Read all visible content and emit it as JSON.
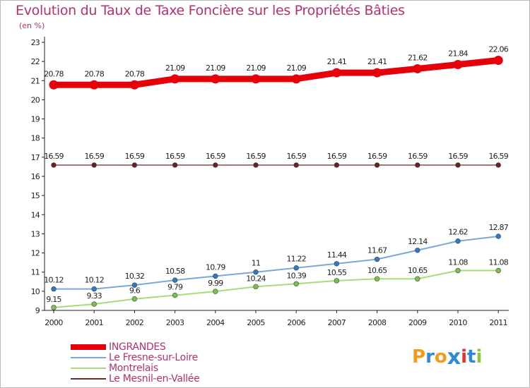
{
  "title": "Evolution du Taux de Taxe Foncière sur les Propriétés Bâties",
  "unit_label": "(en %)",
  "logo": {
    "text": "ProXiti",
    "letters": [
      "P",
      "r",
      "o",
      "x",
      "i",
      "t",
      "i"
    ],
    "colors": [
      "#f39b1a",
      "#2e8ad6",
      "#f39b1a",
      "#2e8ad6",
      "#e6302d",
      "#2e8ad6",
      "#8cc63f"
    ]
  },
  "chart_data": {
    "type": "line",
    "title": "Evolution du Taux de Taxe Foncière sur les Propriétés Bâties",
    "ylabel": "(en %)",
    "ylim": [
      9,
      23
    ],
    "yticks": [
      9,
      10,
      11,
      12,
      13,
      14,
      15,
      16,
      17,
      18,
      19,
      20,
      21,
      22,
      23
    ],
    "x": [
      "2000",
      "2001",
      "2002",
      "2003",
      "2004",
      "2005",
      "2006",
      "2007",
      "2008",
      "2009",
      "2010",
      "2011"
    ],
    "grid": false,
    "legend_position": "bottom-left",
    "series": [
      {
        "name": "INGRANDES",
        "color": "#e6000a",
        "width": 9,
        "values": [
          20.78,
          20.78,
          20.78,
          21.09,
          21.09,
          21.09,
          21.09,
          21.41,
          21.41,
          21.62,
          21.84,
          22.06
        ],
        "labels": [
          "20.78",
          "20.78",
          "20.78",
          "21.09",
          "21.09",
          "21.09",
          "21.09",
          "21.41",
          "21.41",
          "21.62",
          "21.84",
          "22.06"
        ]
      },
      {
        "name": "Le Mesnil-en-Vallée",
        "color": "#6b2b2b",
        "width": 1.2,
        "marker": "#6b1f1f",
        "values": [
          16.59,
          16.59,
          16.59,
          16.59,
          16.59,
          16.59,
          16.59,
          16.59,
          16.59,
          16.59,
          16.59,
          16.59
        ],
        "labels": [
          "16.59",
          "16.59",
          "16.59",
          "16.59",
          "16.59",
          "16.59",
          "16.59",
          "16.59",
          "16.59",
          "16.59",
          "16.59",
          "16.59"
        ]
      },
      {
        "name": "Le Fresne-sur-Loire",
        "color": "#7aa9d3",
        "width": 2,
        "marker": "#2e7bc4",
        "values": [
          10.12,
          10.12,
          10.32,
          10.58,
          10.79,
          11,
          11.22,
          11.44,
          11.67,
          12.14,
          12.62,
          12.87
        ],
        "labels": [
          "10.12",
          "10.12",
          "10.32",
          "10.58",
          "10.79",
          "11",
          "11.22",
          "11.44",
          "11.67",
          "12.14",
          "12.62",
          "12.87"
        ]
      },
      {
        "name": "Montrelais",
        "color": "#a6dd7a",
        "width": 2,
        "marker": "#7cc24a",
        "values": [
          9.15,
          9.33,
          9.6,
          9.79,
          9.99,
          10.24,
          10.39,
          10.55,
          10.65,
          10.65,
          11.08,
          11.08
        ],
        "labels": [
          "9.15",
          "9.33",
          "9.6",
          "9.79",
          "9.99",
          "10.24",
          "10.39",
          "10.55",
          "10.65",
          "10.65",
          "11.08",
          "11.08"
        ]
      }
    ],
    "legend": [
      {
        "name": "INGRANDES",
        "color": "#e6000a"
      },
      {
        "name": "Le Fresne-sur-Loire",
        "color": "#7aa9d3"
      },
      {
        "name": "Montrelais",
        "color": "#a6dd7a"
      },
      {
        "name": "Le Mesnil-en-Vallée",
        "color": "#6b2b2b"
      }
    ]
  }
}
